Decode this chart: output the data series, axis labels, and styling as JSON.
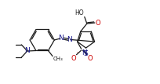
{
  "background": "#ffffff",
  "line_color": "#1a1a1a",
  "nitrogen_color": "#1a1a8a",
  "oxygen_color": "#cc0000",
  "sulfur_color": "#1a1a8a",
  "figsize": [
    2.04,
    1.07
  ],
  "dpi": 100,
  "bond_lw": 0.9,
  "font_size": 5.5,
  "xlim": [
    0,
    20
  ],
  "ylim": [
    0,
    10.5
  ]
}
